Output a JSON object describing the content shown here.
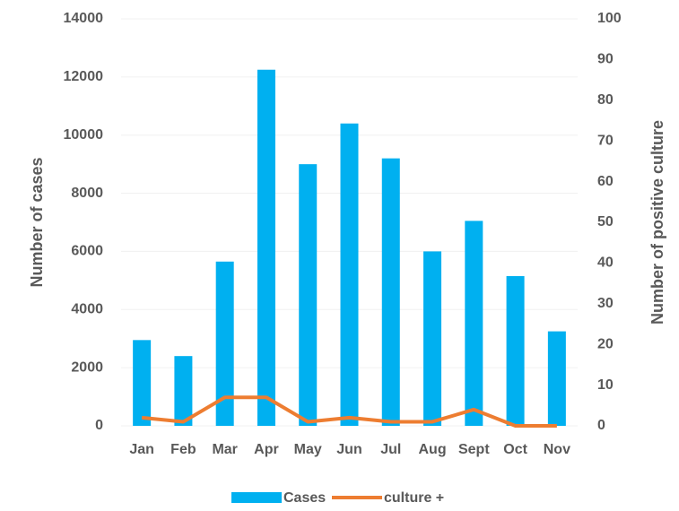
{
  "chart_data": {
    "type": "bar_line",
    "categories": [
      "Jan",
      "Feb",
      "Mar",
      "Apr",
      "May",
      "Jun",
      "Jul",
      "Aug",
      "Sept",
      "Oct",
      "Nov"
    ],
    "series": [
      {
        "name": "Cases",
        "type": "bar",
        "color": "#00b0f0",
        "values": [
          2950,
          2400,
          5650,
          12250,
          9000,
          10400,
          9200,
          6000,
          7050,
          5150,
          3250
        ]
      },
      {
        "name": "culture +",
        "type": "line",
        "color": "#ed7d31",
        "axis": "y2",
        "values": [
          2,
          1,
          7,
          7,
          1,
          2,
          1,
          1,
          4,
          0,
          0
        ]
      }
    ],
    "ylabel": "Number of cases",
    "y2label": "Number of positive culture",
    "ylim": [
      0,
      14000
    ],
    "yticks": [
      0,
      2000,
      4000,
      6000,
      8000,
      10000,
      12000,
      14000
    ],
    "y2lim": [
      0,
      100
    ],
    "y2ticks": [
      0,
      10,
      20,
      30,
      40,
      50,
      60,
      70,
      80,
      90,
      100
    ],
    "legend": "bottom"
  }
}
